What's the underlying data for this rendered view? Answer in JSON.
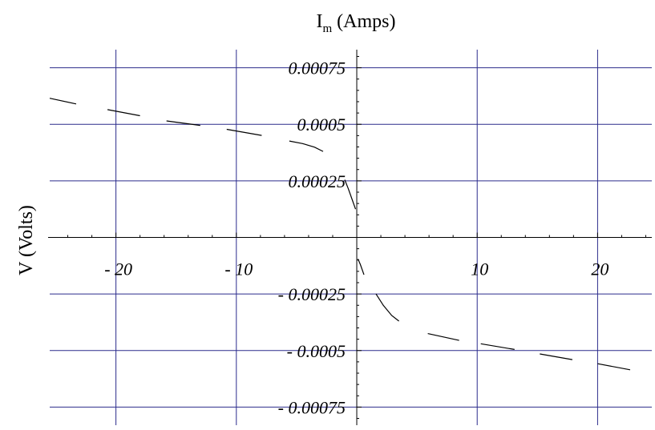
{
  "chart_data": {
    "type": "line",
    "title": "",
    "xlabel": "",
    "top_label": {
      "main": "I",
      "sub": "m",
      "rest": " (Amps)"
    },
    "ylabel": "V (Volts)",
    "xlim": [
      -25.5,
      24.5
    ],
    "ylim": [
      -0.00083,
      0.00083
    ],
    "grid": true,
    "x_ticks": [
      {
        "value": -20,
        "label": "- 20"
      },
      {
        "value": -10,
        "label": "- 10"
      },
      {
        "value": 10,
        "label": "10"
      },
      {
        "value": 20,
        "label": "20"
      }
    ],
    "y_ticks": [
      {
        "value": 0.00075,
        "label": "0.00075"
      },
      {
        "value": 0.0005,
        "label": "0.0005"
      },
      {
        "value": 0.00025,
        "label": "0.00025"
      },
      {
        "value": -0.00025,
        "label": "- 0.00025"
      },
      {
        "value": -0.0005,
        "label": "- 0.0005"
      },
      {
        "value": -0.00075,
        "label": "- 0.00075"
      }
    ],
    "series": [
      {
        "style": "dashed",
        "segments": [
          [
            [
              -25.5,
              0.000615
            ],
            [
              -23.3,
              0.00059
            ]
          ],
          [
            [
              -20.7,
              0.000565
            ],
            [
              -18.0,
              0.000538
            ]
          ],
          [
            [
              -15.8,
              0.000515
            ],
            [
              -13.0,
              0.000495
            ]
          ],
          [
            [
              -10.8,
              0.000478
            ],
            [
              -7.9,
              0.000451
            ]
          ],
          [
            [
              -5.6,
              0.000426
            ],
            [
              -4.5,
              0.000415
            ],
            [
              -3.5,
              0.000399
            ],
            [
              -2.8,
              0.00038
            ]
          ],
          [
            [
              -1.0,
              0.000255
            ],
            [
              -0.7,
              0.000215
            ],
            [
              -0.4,
              0.00017
            ],
            [
              -0.1,
              0.000125
            ]
          ],
          [
            [
              0.1,
              -9.5e-05
            ],
            [
              0.3,
              -0.00012
            ],
            [
              0.6,
              -0.000165
            ]
          ],
          [
            [
              1.6,
              -0.00025
            ],
            [
              2.2,
              -0.0003
            ],
            [
              2.9,
              -0.000345
            ],
            [
              3.5,
              -0.00037
            ]
          ],
          [
            [
              5.9,
              -0.000425
            ],
            [
              8.5,
              -0.000455
            ]
          ],
          [
            [
              10.3,
              -0.00047
            ],
            [
              13.1,
              -0.000495
            ]
          ],
          [
            [
              15.2,
              -0.000515
            ],
            [
              17.9,
              -0.00054
            ]
          ],
          [
            [
              20.0,
              -0.000558
            ],
            [
              22.7,
              -0.000585
            ]
          ]
        ]
      }
    ]
  }
}
